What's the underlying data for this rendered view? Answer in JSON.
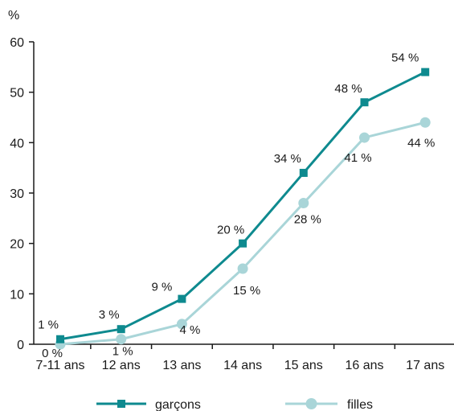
{
  "chart_data": {
    "type": "line",
    "ylabel": "%",
    "ylim": [
      0,
      60
    ],
    "yticks": [
      0,
      10,
      20,
      30,
      40,
      50,
      60
    ],
    "categories": [
      "7-11 ans",
      "12 ans",
      "13 ans",
      "14 ans",
      "15 ans",
      "16 ans",
      "17 ans"
    ],
    "legend_position": "bottom",
    "grid": false,
    "series": [
      {
        "name": "garçons",
        "color": "#0e8a8f",
        "marker": "square",
        "values": [
          1,
          3,
          9,
          20,
          34,
          48,
          54
        ],
        "labels": [
          "1 %",
          "3 %",
          "9 %",
          "20 %",
          "34 %",
          "48 %",
          "54 %"
        ]
      },
      {
        "name": "filles",
        "color": "#a9d5d8",
        "marker": "circle",
        "values": [
          0,
          1,
          4,
          15,
          28,
          41,
          44
        ],
        "labels": [
          "0 %",
          "1 %",
          "4 %",
          "15 %",
          "28 %",
          "41 %",
          "44 %"
        ]
      }
    ]
  }
}
